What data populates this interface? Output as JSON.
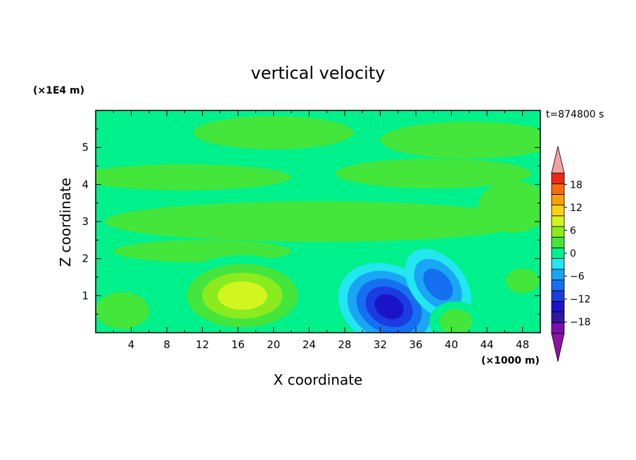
{
  "chart_data": {
    "type": "heatmap",
    "title": "vertical velocity",
    "time_label": "t=874800 s",
    "xlabel": "X coordinate",
    "ylabel": "Z coordinate",
    "x_units": "(×1000 m)",
    "y_units": "(×1E4 m)",
    "xlim": [
      0,
      50
    ],
    "ylim": [
      0,
      6
    ],
    "x_ticks": [
      "4",
      "8",
      "12",
      "16",
      "20",
      "24",
      "28",
      "32",
      "36",
      "40",
      "44",
      "48"
    ],
    "y_ticks": [
      "1",
      "2",
      "3",
      "4",
      "5"
    ],
    "colorbar": {
      "range": [
        -21,
        21
      ],
      "step": 3,
      "extend": "both",
      "tick_labels": [
        "18",
        "12",
        "6",
        "0",
        "−6",
        "−12",
        "−18"
      ],
      "levels": [
        -21,
        -18,
        -15,
        -12,
        -9,
        -6,
        -3,
        0,
        3,
        6,
        9,
        12,
        15,
        18,
        21
      ],
      "colors": [
        "#7b0fb0",
        "#3316a0",
        "#1a14c8",
        "#1a3ce0",
        "#1470f0",
        "#1aa6f5",
        "#22e6f0",
        "#00f08c",
        "#44e63c",
        "#8aeb1e",
        "#d2f51e",
        "#fad214",
        "#faa00a",
        "#f56c10",
        "#f02814"
      ],
      "under_color": "#8c14a0",
      "over_color": "#f5a0a0"
    },
    "features": [
      {
        "kind": "updraft",
        "x": 16.5,
        "z": 1.0,
        "max": 11
      },
      {
        "kind": "downdraft",
        "x": 33.0,
        "z": 0.7,
        "min": -14
      },
      {
        "kind": "downdraft",
        "x": 38.5,
        "z": 1.3,
        "min": -9
      },
      {
        "kind": "updraft",
        "x": 40.5,
        "z": 0.3,
        "max": 5
      },
      {
        "kind": "updraft",
        "x": 48.0,
        "z": 1.4,
        "max": 4
      }
    ]
  }
}
